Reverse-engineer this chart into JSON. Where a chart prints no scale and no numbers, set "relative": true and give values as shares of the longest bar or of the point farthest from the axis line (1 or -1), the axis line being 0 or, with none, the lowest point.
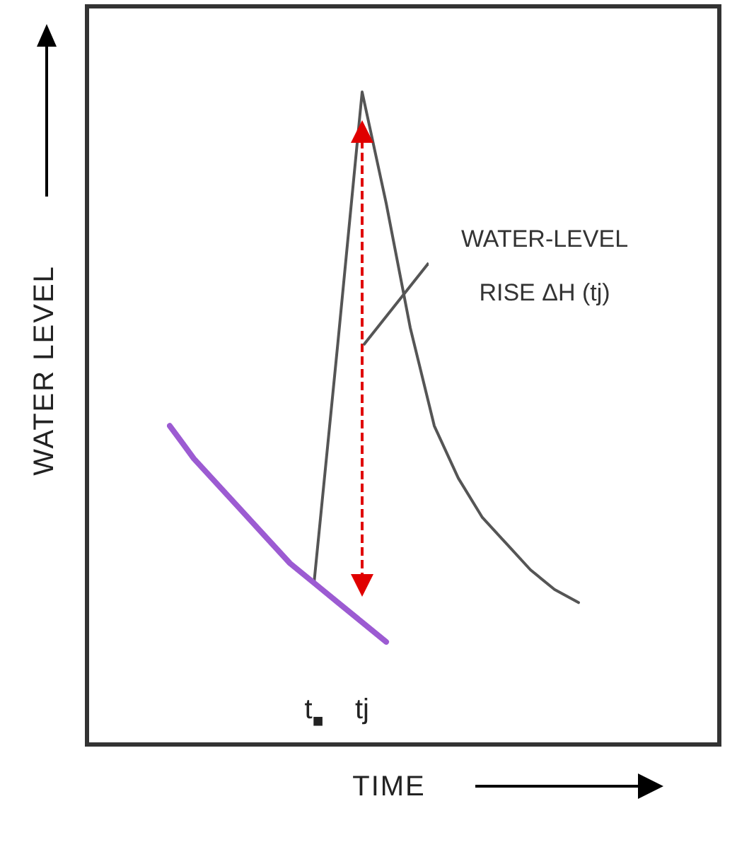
{
  "chart_data": {
    "type": "line",
    "relative": true,
    "xlabel": "TIME",
    "ylabel": "WATER LEVEL",
    "marker": "none",
    "categories": [
      null,
      null,
      null,
      null,
      null,
      null,
      "t$_{■}$",
      null,
      "tj",
      null,
      null,
      null,
      null,
      null,
      null,
      null,
      null,
      null,
      null
    ],
    "series": [
      {
        "color": "#9c5bd2",
        "values": [
          0.49,
          0.44,
          0.4,
          0.36,
          0.32,
          0.28,
          0.25,
          0.22,
          0.19,
          0.16,
          null,
          null,
          null,
          null,
          null,
          null,
          null,
          null,
          null
        ]
      },
      {
        "color": "#555555",
        "values": [
          null,
          null,
          null,
          null,
          null,
          null,
          0.25,
          0.62,
          1,
          0.83,
          0.64,
          0.49,
          0.41,
          0.35,
          0.31,
          0.27,
          0.24,
          0.22,
          null
        ]
      }
    ],
    "annotations": [
      "WATER-LEVEL RISE ΔH (tj)"
    ]
  }
}
